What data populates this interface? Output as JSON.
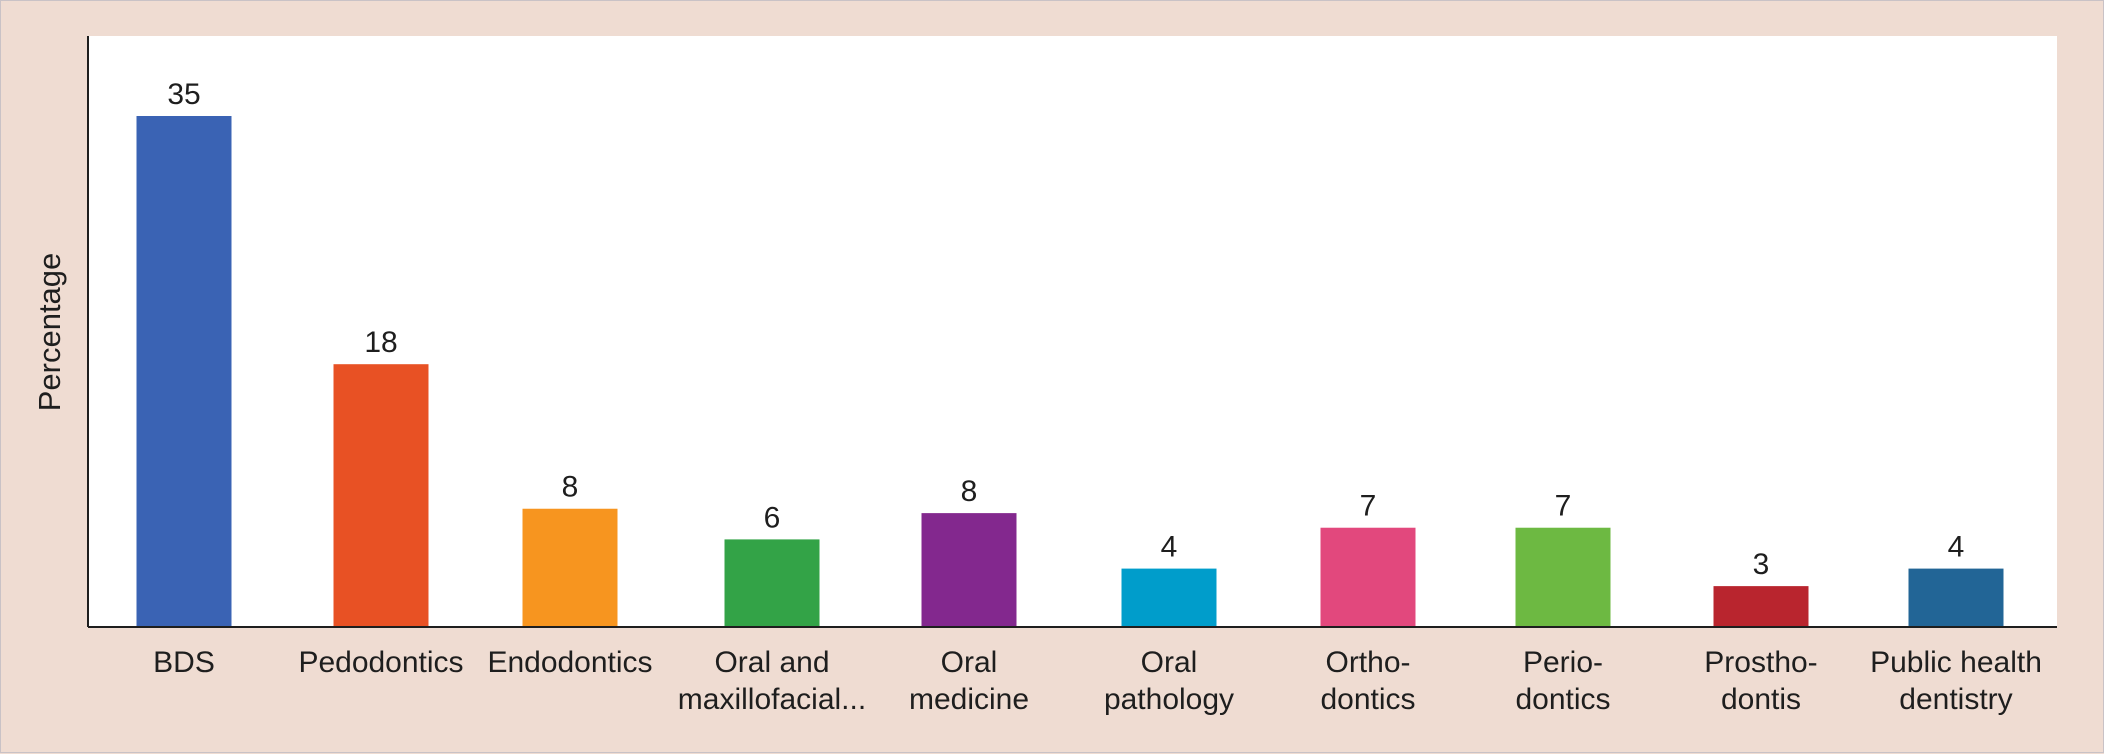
{
  "chart_data": {
    "type": "bar",
    "title": "",
    "xlabel": "",
    "ylabel": "Percentage",
    "categories": [
      "BDS",
      "Pedodontics",
      "Endodontics",
      "Oral and maxillofacial...",
      "Oral medicine",
      "Oral pathology",
      "Ortho-dontics",
      "Perio-dontics",
      "Prostho-dontis",
      "Public health dentistry"
    ],
    "category_lines": [
      [
        "BDS"
      ],
      [
        "Pedodontics"
      ],
      [
        "Endodontics"
      ],
      [
        "Oral and",
        "maxillofacial..."
      ],
      [
        "Oral",
        "medicine"
      ],
      [
        "Oral",
        "pathology"
      ],
      [
        "Ortho-",
        "dontics"
      ],
      [
        "Perio-",
        "dontics"
      ],
      [
        "Prostho-",
        "dontis"
      ],
      [
        "Public health",
        "dentistry"
      ]
    ],
    "values": [
      35,
      18,
      8,
      6,
      8,
      4,
      7,
      7,
      3,
      4
    ],
    "bar_heights": [
      35,
      18,
      8.1,
      6,
      7.8,
      4,
      6.8,
      6.8,
      2.8,
      4
    ],
    "colors": [
      "#3a63b4",
      "#e85124",
      "#f7951f",
      "#33a347",
      "#83288e",
      "#009dcb",
      "#e2487d",
      "#6db942",
      "#b9252e",
      "#226596"
    ],
    "ylim": [
      0,
      40
    ],
    "grid": false,
    "legend": "none"
  },
  "colors": {
    "background": "#efdcd2",
    "plot_area": "#ffffff",
    "axis": "#1e1e1e",
    "text": "#1e1e1e"
  }
}
